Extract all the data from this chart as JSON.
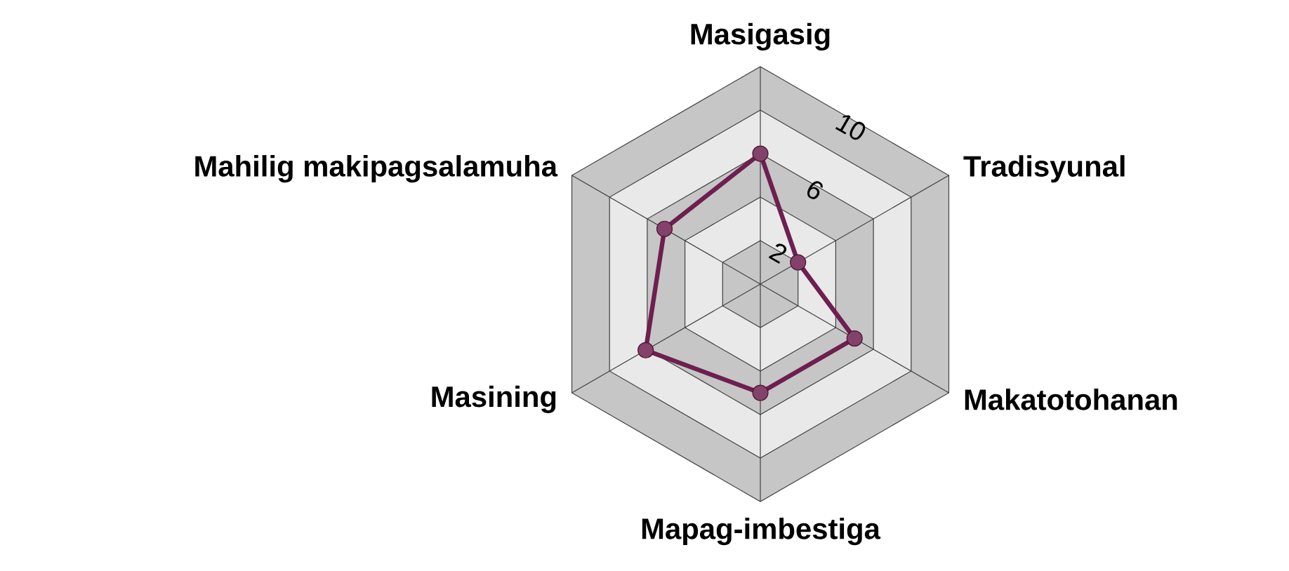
{
  "chart_data": {
    "type": "radar",
    "categories": [
      "Masigasig",
      "Tradisyunal",
      "Makatotohanan",
      "Mapag-imbestiga",
      "Masining",
      "Mahilig makipagsalamuha"
    ],
    "series": [
      {
        "color": "#6e1f4f",
        "values": [
          7.2,
          2.4,
          6.0,
          6.0,
          7.3,
          6.1
        ]
      }
    ],
    "ylim": [
      0,
      12
    ],
    "yticks": [
      2,
      6,
      10
    ],
    "grid": true,
    "marker": "circle"
  }
}
